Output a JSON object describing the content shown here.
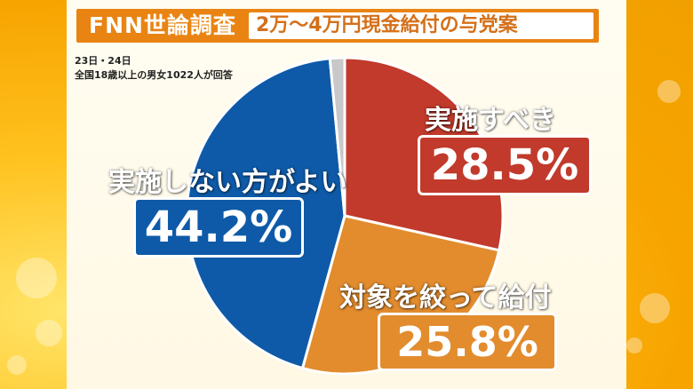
{
  "header": {
    "title": "FNN世論調査",
    "subtitle": "2万～4万円現金給付の与党案"
  },
  "notes": {
    "date": "23日・24日",
    "sample": "全国18歳以上の男女1022人が回答"
  },
  "colors": {
    "should_implement": "#c13a2b",
    "targeted": "#e28c2e",
    "should_not": "#0e5aa8",
    "other": "#c8c8c8",
    "header": "#e98413"
  },
  "chart_data": {
    "type": "pie",
    "title": "2万～4万円現金給付の与党案",
    "slices": [
      {
        "label": "実施すべき",
        "value": 28.5,
        "display": "28.5%"
      },
      {
        "label": "対象を絞って給付",
        "value": 25.8,
        "display": "25.8%"
      },
      {
        "label": "実施しない方がよい",
        "value": 44.2,
        "display": "44.2%"
      },
      {
        "label": "",
        "value": 1.5,
        "display": ""
      }
    ]
  }
}
